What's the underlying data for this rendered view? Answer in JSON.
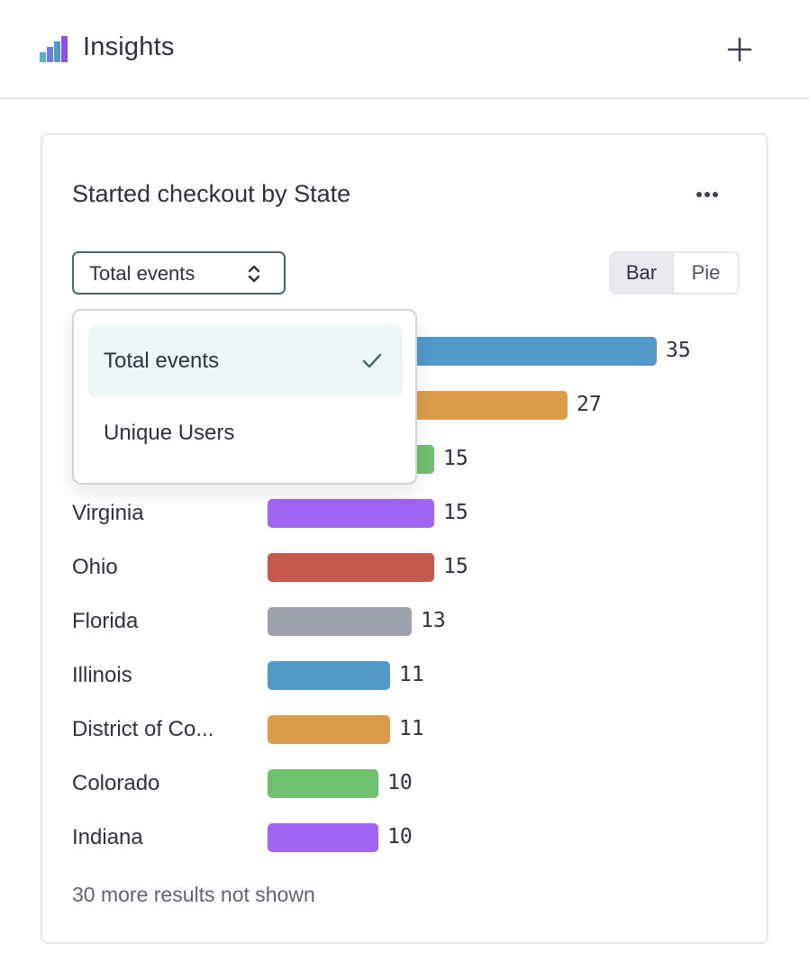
{
  "header": {
    "title": "Insights",
    "logo_icon": "bar-chart-logo-icon",
    "add_icon": "plus-icon"
  },
  "card": {
    "title": "Started checkout by State",
    "menu_icon": "more-horizontal-icon",
    "metric_select": {
      "value": "Total events",
      "options": [
        "Total events",
        "Unique Users"
      ],
      "selected_index": 0
    },
    "view_toggle": {
      "bar_label": "Bar",
      "pie_label": "Pie",
      "active": "Bar"
    },
    "rows": [
      {
        "label": "",
        "value": 35,
        "color": "#5299c7"
      },
      {
        "label": "",
        "value": 27,
        "color": "#dc9d4a"
      },
      {
        "label": "",
        "value": 15,
        "color": "#6fc06f"
      },
      {
        "label": "Virginia",
        "value": 15,
        "color": "#a065f2"
      },
      {
        "label": "Ohio",
        "value": 15,
        "color": "#c4594d"
      },
      {
        "label": "Florida",
        "value": 13,
        "color": "#9ca3ad"
      },
      {
        "label": "Illinois",
        "value": 11,
        "color": "#5299c7"
      },
      {
        "label": "District of Co...",
        "value": 11,
        "color": "#dc9d4a"
      },
      {
        "label": "Colorado",
        "value": 10,
        "color": "#6fc06f"
      },
      {
        "label": "Indiana",
        "value": 10,
        "color": "#a065f2"
      }
    ],
    "footer_note": "30 more results not shown"
  },
  "dropdown": {
    "items": [
      {
        "label": "Total events",
        "selected": true
      },
      {
        "label": "Unique Users",
        "selected": false
      }
    ]
  }
}
